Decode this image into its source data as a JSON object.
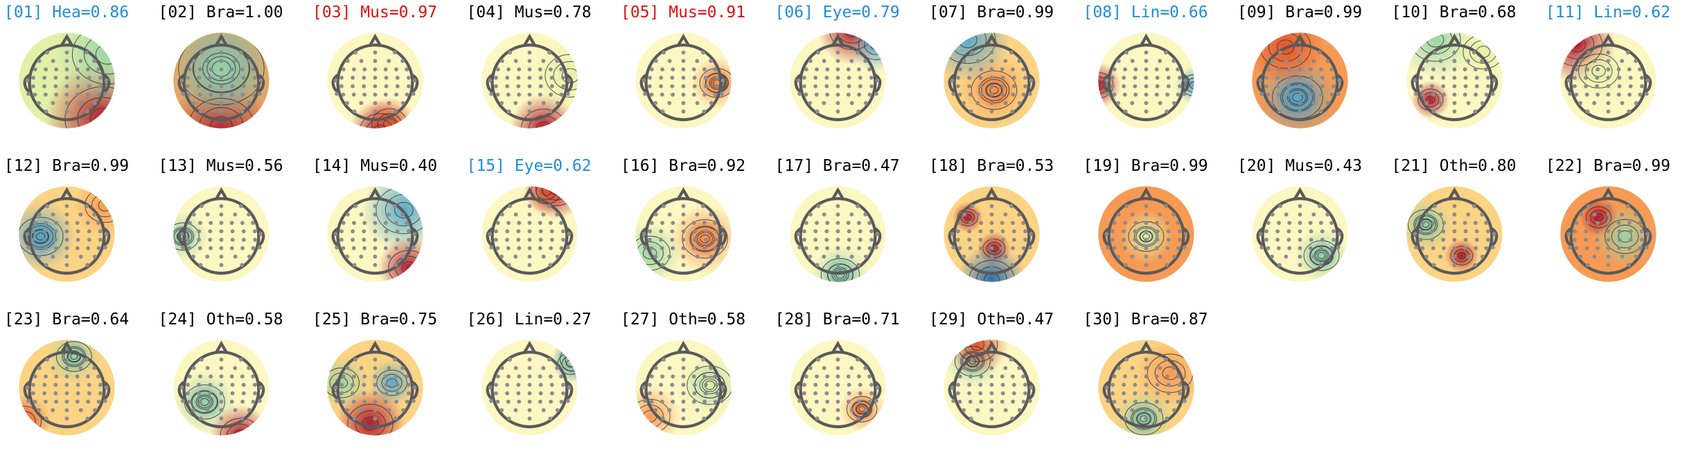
{
  "colors": {
    "label_default": "#000000",
    "label_highlight_blue": "#1f8ce0",
    "label_highlight_red": "#e01010",
    "contour_line": "#333333",
    "head_outline": "#5a5a5a",
    "sensor_dot": "#8c8c8c",
    "colormap": [
      "#2b6fb5",
      "#5aa9c9",
      "#9dd4a6",
      "#e3f0a8",
      "#fdf7c2",
      "#fdd384",
      "#f79a54",
      "#e0532d",
      "#b2182b"
    ]
  },
  "chart_data": {
    "type": "topomap-grid",
    "title": "",
    "columns": 11,
    "components": [
      {
        "id": "01",
        "label": "Hea",
        "score": "0.86",
        "color": "blue"
      },
      {
        "id": "02",
        "label": "Bra",
        "score": "1.00",
        "color": "black"
      },
      {
        "id": "03",
        "label": "Mus",
        "score": "0.97",
        "color": "red"
      },
      {
        "id": "04",
        "label": "Mus",
        "score": "0.78",
        "color": "black"
      },
      {
        "id": "05",
        "label": "Mus",
        "score": "0.91",
        "color": "red"
      },
      {
        "id": "06",
        "label": "Eye",
        "score": "0.79",
        "color": "blue"
      },
      {
        "id": "07",
        "label": "Bra",
        "score": "0.99",
        "color": "black"
      },
      {
        "id": "08",
        "label": "Lin",
        "score": "0.66",
        "color": "blue"
      },
      {
        "id": "09",
        "label": "Bra",
        "score": "0.99",
        "color": "black"
      },
      {
        "id": "10",
        "label": "Bra",
        "score": "0.68",
        "color": "black"
      },
      {
        "id": "11",
        "label": "Lin",
        "score": "0.62",
        "color": "blue"
      },
      {
        "id": "12",
        "label": "Bra",
        "score": "0.99",
        "color": "black"
      },
      {
        "id": "13",
        "label": "Mus",
        "score": "0.56",
        "color": "black"
      },
      {
        "id": "14",
        "label": "Mus",
        "score": "0.40",
        "color": "black"
      },
      {
        "id": "15",
        "label": "Eye",
        "score": "0.62",
        "color": "blue"
      },
      {
        "id": "16",
        "label": "Bra",
        "score": "0.92",
        "color": "black"
      },
      {
        "id": "17",
        "label": "Bra",
        "score": "0.47",
        "color": "black"
      },
      {
        "id": "18",
        "label": "Bra",
        "score": "0.53",
        "color": "black"
      },
      {
        "id": "19",
        "label": "Bra",
        "score": "0.99",
        "color": "black"
      },
      {
        "id": "20",
        "label": "Mus",
        "score": "0.43",
        "color": "black"
      },
      {
        "id": "21",
        "label": "Oth",
        "score": "0.80",
        "color": "black"
      },
      {
        "id": "22",
        "label": "Bra",
        "score": "0.99",
        "color": "black"
      },
      {
        "id": "23",
        "label": "Bra",
        "score": "0.64",
        "color": "black"
      },
      {
        "id": "24",
        "label": "Oth",
        "score": "0.58",
        "color": "black"
      },
      {
        "id": "25",
        "label": "Bra",
        "score": "0.75",
        "color": "black"
      },
      {
        "id": "26",
        "label": "Lin",
        "score": "0.27",
        "color": "black"
      },
      {
        "id": "27",
        "label": "Oth",
        "score": "0.58",
        "color": "black"
      },
      {
        "id": "28",
        "label": "Bra",
        "score": "0.71",
        "color": "black"
      },
      {
        "id": "29",
        "label": "Oth",
        "score": "0.47",
        "color": "black"
      },
      {
        "id": "30",
        "label": "Bra",
        "score": "0.87",
        "color": "black"
      }
    ]
  }
}
